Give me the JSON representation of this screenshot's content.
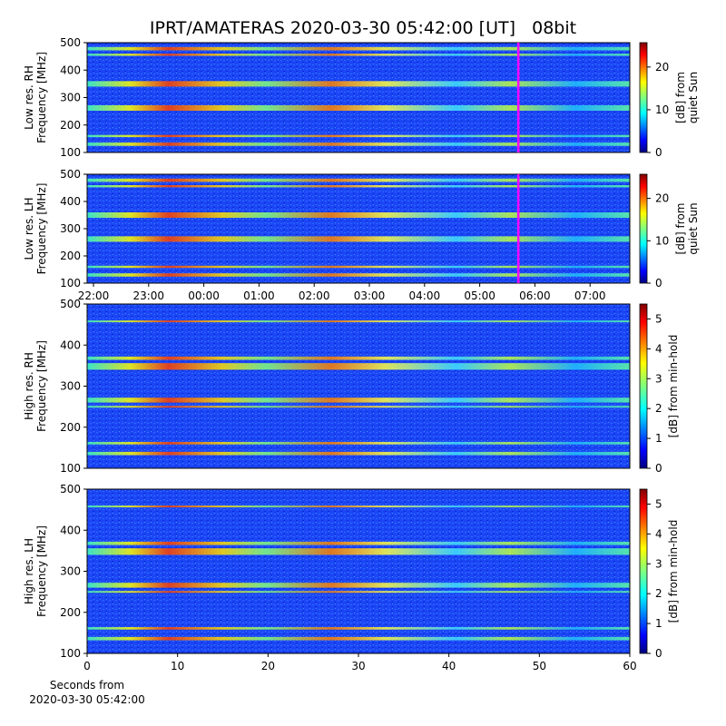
{
  "title": "IPRT/AMATERAS 2020-03-30 05:42:00 [UT]   08bit",
  "chart_data": [
    {
      "type": "heatmap",
      "ylabel": [
        "Low res. RH",
        "Frequency [MHz]"
      ],
      "ylim": [
        100,
        500
      ],
      "yticks": [
        100,
        200,
        300,
        400,
        500
      ],
      "xlim": [
        -0.115,
        9.72
      ],
      "marker": {
        "x": 7.7,
        "color": "#ff00ff"
      },
      "colorbar": {
        "label": [
          "[dB] from",
          "quiet Sun"
        ],
        "lim": [
          0,
          25.7
        ],
        "ticks": [
          0,
          10,
          20
        ]
      }
    },
    {
      "type": "heatmap",
      "ylabel": [
        "Low res. LH",
        "Frequency [MHz]"
      ],
      "ylim": [
        100,
        500
      ],
      "yticks": [
        100,
        200,
        300,
        400,
        500
      ],
      "xlim": [
        -0.115,
        9.72
      ],
      "xticks": [
        {
          "value": 0,
          "label": "22:00"
        },
        {
          "value": 1,
          "label": "23:00"
        },
        {
          "value": 2,
          "label": "00:00"
        },
        {
          "value": 3,
          "label": "01:00"
        },
        {
          "value": 4,
          "label": "02:00"
        },
        {
          "value": 5,
          "label": "03:00"
        },
        {
          "value": 6,
          "label": "04:00"
        },
        {
          "value": 7,
          "label": "05:00"
        },
        {
          "value": 8,
          "label": "06:00"
        },
        {
          "value": 9,
          "label": "07:00"
        }
      ],
      "marker": {
        "x": 7.7,
        "color": "#ff00ff"
      },
      "colorbar": {
        "label": [
          "[dB] from",
          "quiet Sun"
        ],
        "lim": [
          0,
          25.7
        ],
        "ticks": [
          0,
          10,
          20
        ]
      }
    },
    {
      "type": "heatmap",
      "ylabel": [
        "High res. RH",
        "Frequency [MHz]"
      ],
      "ylim": [
        100,
        500
      ],
      "yticks": [
        100,
        200,
        300,
        400,
        500
      ],
      "xlim": [
        0,
        60
      ],
      "colorbar": {
        "label": [
          "[dB] from min-hold"
        ],
        "lim": [
          0,
          5.5
        ],
        "ticks": [
          0,
          1,
          2,
          3,
          4,
          5
        ]
      }
    },
    {
      "type": "heatmap",
      "ylabel": [
        "High res. LH",
        "Frequency [MHz]"
      ],
      "ylim": [
        100,
        500
      ],
      "yticks": [
        100,
        200,
        300,
        400,
        500
      ],
      "xlim": [
        0,
        60
      ],
      "xticks": [
        0,
        10,
        20,
        30,
        40,
        50,
        60
      ],
      "xlabel": [
        "Seconds from",
        "2020-03-30 05:42:00"
      ],
      "colorbar": {
        "label": [
          "[dB] from min-hold"
        ],
        "lim": [
          0,
          5.5
        ],
        "ticks": [
          0,
          1,
          2,
          3,
          4,
          5
        ]
      }
    }
  ]
}
